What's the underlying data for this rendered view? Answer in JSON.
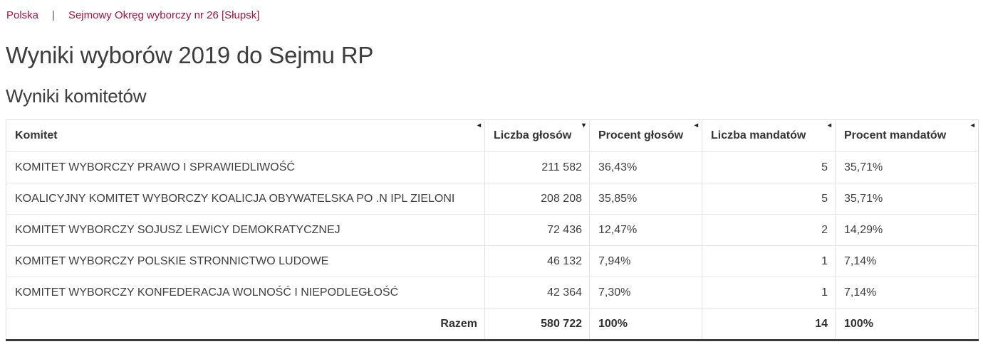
{
  "breadcrumb": {
    "items": [
      {
        "label": "Polska"
      },
      {
        "label": "Sejmowy Okręg wyborczy nr 26 [Słupsk]"
      }
    ],
    "separator": "|"
  },
  "page": {
    "title": "Wyniki wyborów 2019 do Sejmu RP",
    "section_title": "Wyniki komitetów"
  },
  "colors": {
    "link": "#a8143f",
    "breadcrumb_separator": "#44546a",
    "heading_text": "#3d3d3d",
    "table_text": "#3f3f3f",
    "table_grid_light": "#e3e3e3",
    "table_bottom_border": "#3a3a3a"
  },
  "table": {
    "columns": [
      {
        "label": "Komitet",
        "sort_icon": "◂",
        "align": "left"
      },
      {
        "label": "Liczba głosów",
        "sort_icon": "▾",
        "align": "right"
      },
      {
        "label": "Procent głosów",
        "sort_icon": "◂",
        "align": "left"
      },
      {
        "label": "Liczba mandatów",
        "sort_icon": "◂",
        "align": "right"
      },
      {
        "label": "Procent mandatów",
        "sort_icon": "◂",
        "align": "left"
      }
    ],
    "rows": [
      {
        "committee": "KOMITET WYBORCZY PRAWO I SPRAWIEDLIWOŚĆ",
        "votes": "211 582",
        "votes_pct": "36,43%",
        "mandates": "5",
        "mandates_pct": "35,71%"
      },
      {
        "committee": "KOALICYJNY KOMITET WYBORCZY KOALICJA OBYWATELSKA PO .N IPL ZIELONI",
        "votes": "208 208",
        "votes_pct": "35,85%",
        "mandates": "5",
        "mandates_pct": "35,71%"
      },
      {
        "committee": "KOMITET WYBORCZY SOJUSZ LEWICY DEMOKRATYCZNEJ",
        "votes": "72 436",
        "votes_pct": "12,47%",
        "mandates": "2",
        "mandates_pct": "14,29%"
      },
      {
        "committee": "KOMITET WYBORCZY POLSKIE STRONNICTWO LUDOWE",
        "votes": "46 132",
        "votes_pct": "7,94%",
        "mandates": "1",
        "mandates_pct": "7,14%"
      },
      {
        "committee": "KOMITET WYBORCZY KONFEDERACJA WOLNOŚĆ I NIEPODLEGŁOŚĆ",
        "votes": "42 364",
        "votes_pct": "7,30%",
        "mandates": "1",
        "mandates_pct": "7,14%"
      }
    ],
    "footer": {
      "label": "Razem",
      "votes": "580 722",
      "votes_pct": "100%",
      "mandates": "14",
      "mandates_pct": "100%"
    }
  }
}
